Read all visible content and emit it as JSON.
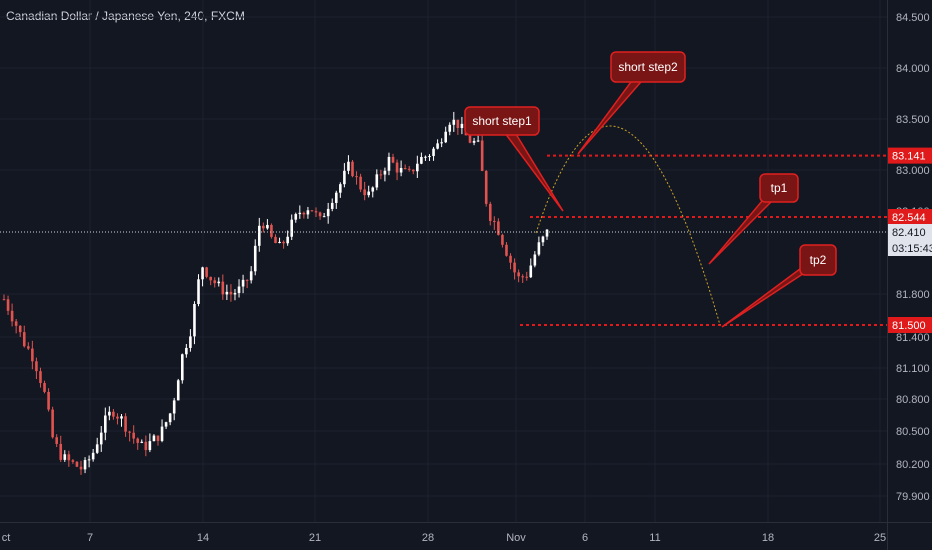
{
  "header": {
    "title": "Canadian Dollar / Japanese Yen, 240, FXCM"
  },
  "colors": {
    "background": "#131722",
    "grid": "#1e222d",
    "up": "#ffffff",
    "down": "#e0534f",
    "level": "#e01a1a",
    "callout_fill": "#7a1515",
    "callout_stroke": "#e02020",
    "projection": "#c9a227",
    "axis_text": "#b2b5be",
    "price_tag_bg": "#e0e3eb"
  },
  "axis": {
    "y_ticks": [
      "84.500",
      "84.000",
      "83.500",
      "83.000",
      "81.800",
      "81.400",
      "81.100",
      "80.800",
      "80.500",
      "80.200",
      "79.900"
    ],
    "hidden_tick": "82.100",
    "x_ticks": [
      "ct",
      "7",
      "14",
      "21",
      "28",
      "Nov",
      "6",
      "11",
      "18",
      "25"
    ],
    "current_price": "82.410",
    "countdown": "03:15:43"
  },
  "chart_data": {
    "type": "candlestick",
    "title": "Canadian Dollar / Japanese Yen, 240, FXCM",
    "y_range": [
      79.7,
      84.55
    ],
    "x_labels": [
      "ct",
      "7",
      "14",
      "21",
      "28",
      "Nov",
      "6",
      "11",
      "18",
      "25"
    ],
    "path_points_price": [
      81.75,
      81.55,
      81.35,
      81.2,
      80.9,
      80.4,
      80.25,
      80.2,
      80.15,
      80.3,
      80.55,
      80.7,
      80.6,
      80.45,
      80.35,
      80.4,
      80.5,
      80.7,
      81.2,
      81.5,
      82.1,
      81.95,
      81.85,
      81.8,
      81.85,
      82.0,
      82.55,
      82.35,
      82.25,
      82.45,
      82.6,
      82.65,
      82.5,
      82.7,
      82.85,
      83.05,
      82.85,
      82.75,
      82.95,
      83.1,
      83.0,
      82.95,
      83.1,
      83.15,
      83.25,
      83.5,
      83.45,
      83.3,
      83.25,
      82.6,
      82.45,
      82.2,
      81.95,
      82.0,
      82.25,
      82.4
    ],
    "levels": [
      {
        "name": "short step2",
        "price": 83.141,
        "label": "83.141"
      },
      {
        "name": "short step1",
        "price": 82.544,
        "label": "82.544"
      },
      {
        "name": "tp2",
        "price": 81.5,
        "label": "81.500"
      }
    ],
    "current_price": 82.41,
    "annotations": [
      "short step1",
      "short step2",
      "tp1",
      "tp2"
    ]
  }
}
